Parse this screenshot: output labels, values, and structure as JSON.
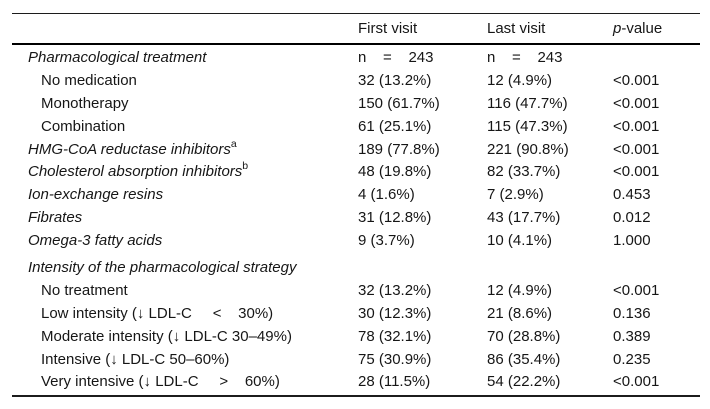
{
  "table": {
    "header": {
      "first_visit": "First visit",
      "last_visit": "Last visit",
      "p_italic": "p",
      "p_rest": "-value"
    },
    "rows": [
      {
        "label": "Pharmacological treatment",
        "sup": "",
        "first_visit": "n    =    243",
        "last_visit": "n    =    243",
        "p_value": ""
      },
      {
        "label": "No medication",
        "sup": "",
        "first_visit": "32 (13.2%)",
        "last_visit": "12 (4.9%)",
        "p_value": "<0.001"
      },
      {
        "label": "Monotherapy",
        "sup": "",
        "first_visit": "150 (61.7%)",
        "last_visit": "116 (47.7%)",
        "p_value": "<0.001"
      },
      {
        "label": "Combination",
        "sup": "",
        "first_visit": "61 (25.1%)",
        "last_visit": "115 (47.3%)",
        "p_value": "<0.001"
      },
      {
        "label": "HMG-CoA reductase inhibitors",
        "sup": "a",
        "first_visit": "189 (77.8%)",
        "last_visit": "221 (90.8%)",
        "p_value": "<0.001"
      },
      {
        "label": "Cholesterol absorption inhibitors",
        "sup": "b",
        "first_visit": "48 (19.8%)",
        "last_visit": "82 (33.7%)",
        "p_value": "<0.001"
      },
      {
        "label": "Ion-exchange resins",
        "sup": "",
        "first_visit": "4 (1.6%)",
        "last_visit": "7 (2.9%)",
        "p_value": "0.453"
      },
      {
        "label": "Fibrates",
        "sup": "",
        "first_visit": "31 (12.8%)",
        "last_visit": "43 (17.7%)",
        "p_value": "0.012"
      },
      {
        "label": "Omega-3 fatty acids",
        "sup": "",
        "first_visit": "9 (3.7%)",
        "last_visit": "10 (4.1%)",
        "p_value": "1.000"
      },
      {
        "label": "Intensity of the pharmacological strategy",
        "sup": "",
        "first_visit": "",
        "last_visit": "",
        "p_value": ""
      },
      {
        "label": "No treatment",
        "sup": "",
        "first_visit": "32 (13.2%)",
        "last_visit": "12 (4.9%)",
        "p_value": "<0.001"
      },
      {
        "label": "Low intensity (↓ LDL-C     <    30%)",
        "sup": "",
        "first_visit": "30 (12.3%)",
        "last_visit": "21 (8.6%)",
        "p_value": "0.136"
      },
      {
        "label": "Moderate intensity (↓ LDL-C 30–49%)",
        "sup": "",
        "first_visit": "78 (32.1%)",
        "last_visit": "70 (28.8%)",
        "p_value": "0.389"
      },
      {
        "label": "Intensive (↓ LDL-C 50–60%)",
        "sup": "",
        "first_visit": "75 (30.9%)",
        "last_visit": "86 (35.4%)",
        "p_value": "0.235"
      },
      {
        "label": "Very intensive (↓ LDL-C     >    60%)",
        "sup": "",
        "first_visit": "28 (11.5%)",
        "last_visit": "54 (22.2%)",
        "p_value": "<0.001"
      }
    ]
  }
}
